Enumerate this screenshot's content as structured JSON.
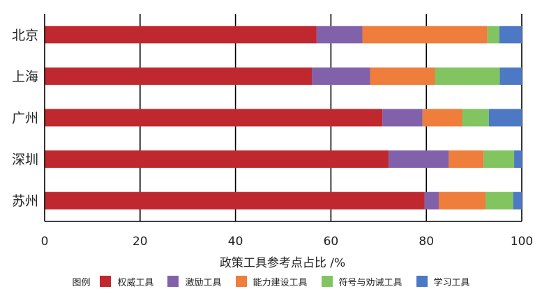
{
  "chart_data": {
    "type": "bar",
    "orientation": "horizontal",
    "stacked": true,
    "categories": [
      "北京",
      "上海",
      "广州",
      "深圳",
      "苏州"
    ],
    "series": [
      {
        "name": "权威工具",
        "color": "#c0282f",
        "values": [
          57.0,
          56.0,
          70.8,
          72.1,
          79.6
        ]
      },
      {
        "name": "激励工具",
        "color": "#8261ab",
        "values": [
          9.6,
          12.2,
          8.4,
          12.6,
          3.0
        ]
      },
      {
        "name": "能力建设工具",
        "color": "#ef7d3c",
        "values": [
          26.2,
          13.6,
          8.3,
          7.3,
          9.8
        ]
      },
      {
        "name": "符号与劝诫工具",
        "color": "#82c460",
        "values": [
          2.5,
          13.6,
          5.6,
          6.4,
          5.8
        ]
      },
      {
        "name": "学习工具",
        "color": "#4d78c4",
        "values": [
          4.7,
          4.6,
          6.9,
          1.6,
          1.8
        ]
      }
    ],
    "xlabel": "政策工具参考点占比 /%",
    "ylabel": "",
    "xlim": [
      0,
      100
    ],
    "xticks": [
      "0",
      "20",
      "40",
      "60",
      "80",
      "100"
    ],
    "grid": "vertical",
    "legend_position": "bottom",
    "legend_title": "图例"
  }
}
